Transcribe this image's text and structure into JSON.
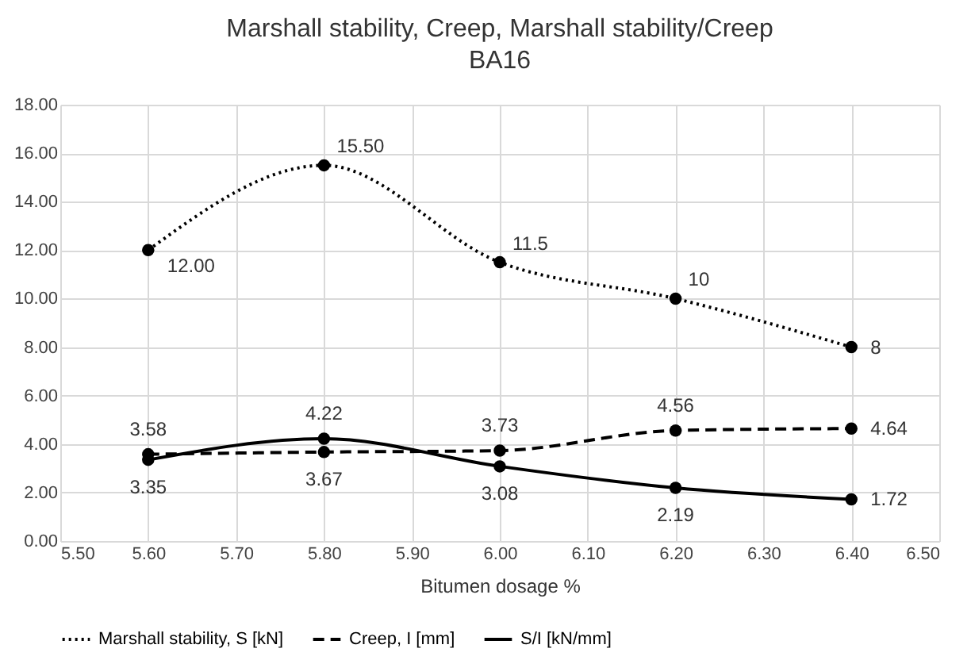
{
  "chart_data": {
    "type": "line",
    "title": "Marshall stability, Creep, Marshall stability/Creep",
    "subtitle": "BA16",
    "xlabel": "Bitumen dosage %",
    "x": [
      5.6,
      5.8,
      6.0,
      6.2,
      6.4
    ],
    "series": [
      {
        "name": "Marshall stability, S [kN]",
        "color": "#000000",
        "line_style": "dotted",
        "values": [
          12.0,
          15.5,
          11.5,
          10,
          8
        ],
        "value_labels": [
          "12.00",
          "15.50",
          "11.5",
          "10",
          "8"
        ]
      },
      {
        "name": "Creep, I [mm]",
        "color": "#000000",
        "line_style": "dashed",
        "values": [
          3.58,
          3.67,
          3.73,
          4.56,
          4.64
        ],
        "value_labels": [
          "3.58",
          "3.67",
          "3.73",
          "4.56",
          "4.64"
        ]
      },
      {
        "name": "S/I [kN/mm]",
        "color": "#000000",
        "line_style": "solid",
        "values": [
          3.35,
          4.22,
          3.08,
          2.19,
          1.72
        ],
        "value_labels": [
          "3.35",
          "4.22",
          "3.08",
          "2.19",
          "1.72"
        ]
      }
    ],
    "xlim": [
      5.5,
      6.5
    ],
    "xticks": [
      {
        "value": 5.5,
        "label": "5.50"
      },
      {
        "value": 5.6,
        "label": "5.60"
      },
      {
        "value": 5.7,
        "label": "5.70"
      },
      {
        "value": 5.8,
        "label": "5.80"
      },
      {
        "value": 5.9,
        "label": "5.90"
      },
      {
        "value": 6.0,
        "label": "6.00"
      },
      {
        "value": 6.1,
        "label": "6.10"
      },
      {
        "value": 6.2,
        "label": "6.20"
      },
      {
        "value": 6.3,
        "label": "6.30"
      },
      {
        "value": 6.4,
        "label": "6.40"
      },
      {
        "value": 6.5,
        "label": "6.50"
      }
    ],
    "ylim": [
      0,
      18
    ],
    "yticks": [
      {
        "value": 0,
        "label": "0.00"
      },
      {
        "value": 2,
        "label": "2.00"
      },
      {
        "value": 4,
        "label": "4.00"
      },
      {
        "value": 6,
        "label": "6.00"
      },
      {
        "value": 8,
        "label": "8.00"
      },
      {
        "value": 10,
        "label": "10.00"
      },
      {
        "value": 12,
        "label": "12.00"
      },
      {
        "value": 14,
        "label": "14.00"
      },
      {
        "value": 16,
        "label": "16.00"
      },
      {
        "value": 18,
        "label": "18.00"
      }
    ],
    "grid": true,
    "legend": "bottom",
    "marker": "circle"
  }
}
